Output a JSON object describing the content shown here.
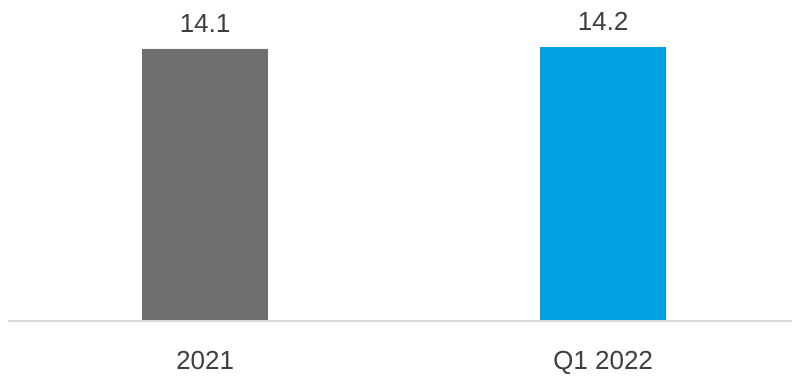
{
  "chart_data": {
    "type": "bar",
    "categories": [
      "2021",
      "Q1 2022"
    ],
    "values": [
      14.1,
      14.2
    ],
    "data_labels": [
      "14.1",
      "14.2"
    ],
    "colors": [
      "#6f6f6f",
      "#00a0e3"
    ],
    "title": "",
    "xlabel": "",
    "ylabel": "",
    "ylim": [
      0,
      14.2
    ],
    "grid": false,
    "legend": "none"
  }
}
